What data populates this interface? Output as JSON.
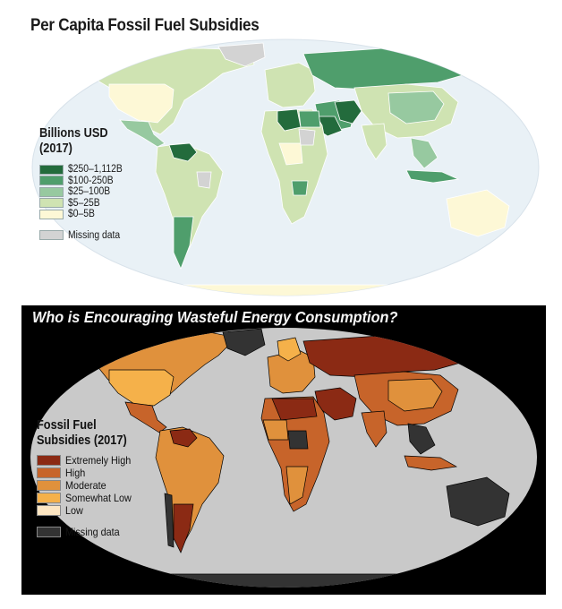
{
  "map1": {
    "title": "Per Capita Fossil Fuel Subsidies",
    "legend_title_line1": "Billions USD",
    "legend_title_line2": "(2017)",
    "legend": [
      {
        "label": "$250–1,112B",
        "color": "#236b3c"
      },
      {
        "label": "$100-250B",
        "color": "#4f9e6c"
      },
      {
        "label": "$25–100B",
        "color": "#97c9a0"
      },
      {
        "label": "$5–25B",
        "color": "#cfe3b2"
      },
      {
        "label": "$0–5B",
        "color": "#fdf8d6"
      }
    ],
    "missing": {
      "label": "Missing data",
      "color": "#d3d3d3"
    },
    "ocean_color": "#e9f1f6",
    "land_color": "#cfe3b2"
  },
  "map2": {
    "title": "Who is Encouraging Wasteful Energy Consumption?",
    "legend_title_line1": "Fossil Fuel",
    "legend_title_line2": "Subsidies (2017)",
    "legend": [
      {
        "label": "Extremely High",
        "color": "#8b2a14"
      },
      {
        "label": "High",
        "color": "#c7642a"
      },
      {
        "label": "Moderate",
        "color": "#e0913c"
      },
      {
        "label": "Somewhat Low",
        "color": "#f5b14a"
      },
      {
        "label": "Low",
        "color": "#fde6c2"
      }
    ],
    "missing": {
      "label": "Missing data",
      "color": "#333333"
    },
    "ocean_color": "#c9c9c9",
    "background": "#000000"
  }
}
